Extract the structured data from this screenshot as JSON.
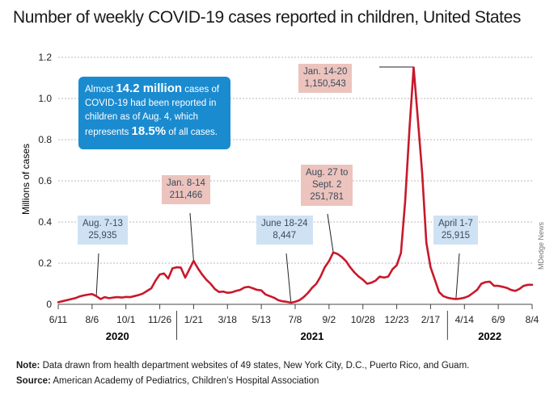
{
  "title": "Number of weekly COVID-19 cases reported in children, United States",
  "chart_data": {
    "type": "line",
    "ylabel": "Millions of cases",
    "ylim": [
      0,
      1.2
    ],
    "yticks": [
      "0",
      "0.2",
      "0.4",
      "0.6",
      "0.8",
      "1.0",
      "1.2"
    ],
    "xtick_labels": [
      "6/11",
      "8/6",
      "10/1",
      "11/26",
      "1/21",
      "3/18",
      "5/13",
      "7/8",
      "9/2",
      "10/28",
      "12/23",
      "2/17",
      "4/14",
      "6/9",
      "8/4"
    ],
    "years": [
      "2020",
      "2021",
      "2022"
    ],
    "color": "#c8192b",
    "series": [
      {
        "values": [
          0.01,
          0.015,
          0.02,
          0.025,
          0.03,
          0.038,
          0.043,
          0.047,
          0.05,
          0.04,
          0.026,
          0.035,
          0.03,
          0.033,
          0.035,
          0.033,
          0.036,
          0.035,
          0.04,
          0.045,
          0.052,
          0.065,
          0.078,
          0.115,
          0.145,
          0.15,
          0.125,
          0.175,
          0.18,
          0.178,
          0.13,
          0.17,
          0.211,
          0.175,
          0.145,
          0.12,
          0.1,
          0.075,
          0.06,
          0.062,
          0.056,
          0.058,
          0.065,
          0.07,
          0.082,
          0.085,
          0.078,
          0.07,
          0.068,
          0.048,
          0.04,
          0.032,
          0.02,
          0.015,
          0.012,
          0.008,
          0.012,
          0.02,
          0.035,
          0.055,
          0.08,
          0.1,
          0.135,
          0.18,
          0.21,
          0.252,
          0.245,
          0.23,
          0.21,
          0.18,
          0.155,
          0.135,
          0.12,
          0.1,
          0.105,
          0.115,
          0.135,
          0.13,
          0.135,
          0.17,
          0.19,
          0.25,
          0.5,
          0.85,
          1.151,
          0.9,
          0.64,
          0.3,
          0.18,
          0.12,
          0.06,
          0.04,
          0.032,
          0.028,
          0.026,
          0.028,
          0.032,
          0.04,
          0.055,
          0.07,
          0.1,
          0.108,
          0.11,
          0.09,
          0.09,
          0.085,
          0.08,
          0.07,
          0.065,
          0.075,
          0.09,
          0.095,
          0.095
        ]
      }
    ]
  },
  "callouts": [
    {
      "line1": "Aug. 7-13",
      "line2": "25,935"
    },
    {
      "line1": "Jan. 8-14",
      "line2": "211,466"
    },
    {
      "line1": "June 18-24",
      "line2": "8,447"
    },
    {
      "line1": "Aug. 27 to",
      "line2": "Sept. 2",
      "line3": "251,781"
    },
    {
      "line1": "Jan. 14-20",
      "line2": "1,150,543"
    },
    {
      "line1": "April 1-7",
      "line2": "25,915"
    }
  ],
  "infobox": {
    "t1": "Almost ",
    "b1": "14.2 million",
    "t2": " cases of COVID-19 had been reported in children as of Aug. 4, which represents ",
    "b2": "18.5%",
    "t3": " of all cases."
  },
  "note_label": "Note:",
  "note_text": " Data drawn from health department websites of 49 states, New York City, D.C., Puerto Rico, and Guam.",
  "source_label": "Source:",
  "source_text": " American Academy of Pediatrics, Children’s Hospital Association",
  "credit": "MDedge News"
}
